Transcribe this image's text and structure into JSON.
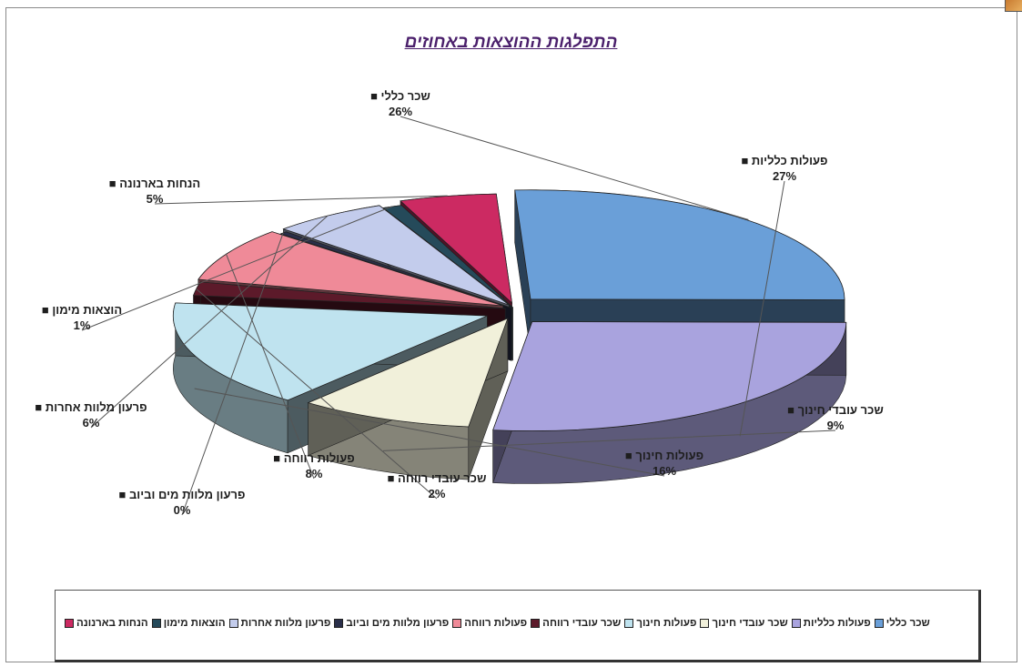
{
  "chart_data": {
    "type": "pie",
    "title": "התפלגות ההוצאות באחוזים",
    "slices": [
      {
        "name": "שכר כללי",
        "value": 26,
        "label": "26%",
        "color": "#6a9fd8"
      },
      {
        "name": "פעולות כלליות",
        "value": 27,
        "label": "27%",
        "color": "#a9a3de"
      },
      {
        "name": "שכר עובדי חינוך",
        "value": 9,
        "label": "9%",
        "color": "#f1f0da"
      },
      {
        "name": "פעולות חינוך",
        "value": 16,
        "label": "16%",
        "color": "#bfe3ef"
      },
      {
        "name": "שכר עובדי רווחה",
        "value": 2,
        "label": "2%",
        "color": "#5c1a2a"
      },
      {
        "name": "פעולות רווחה",
        "value": 8,
        "label": "8%",
        "color": "#ef8a98"
      },
      {
        "name": "פרעון מלוות מים וביוב",
        "value": 0,
        "label": "0%",
        "color": "#2a2f4a"
      },
      {
        "name": "פרעון מלוות אחרות",
        "value": 6,
        "label": "6%",
        "color": "#c3ccec"
      },
      {
        "name": "הוצאות מימון",
        "value": 1,
        "label": "1%",
        "color": "#254a5a"
      },
      {
        "name": "הנחות בארנונה",
        "value": 5,
        "label": "5%",
        "color": "#cc2a62"
      }
    ],
    "legend": {
      "placement": "bottom",
      "entries": [
        "הנחות בארנונה",
        "הוצאות מימון",
        "פרעון מלוות אחרות",
        "פרעון מלוות מים וביוב",
        "פעולות רווחה",
        "שכר עובדי רווחה",
        "פעולות חינוך",
        "שכר עובדי חינוך",
        "פעולות כלליות",
        "שכר כללי"
      ]
    }
  }
}
